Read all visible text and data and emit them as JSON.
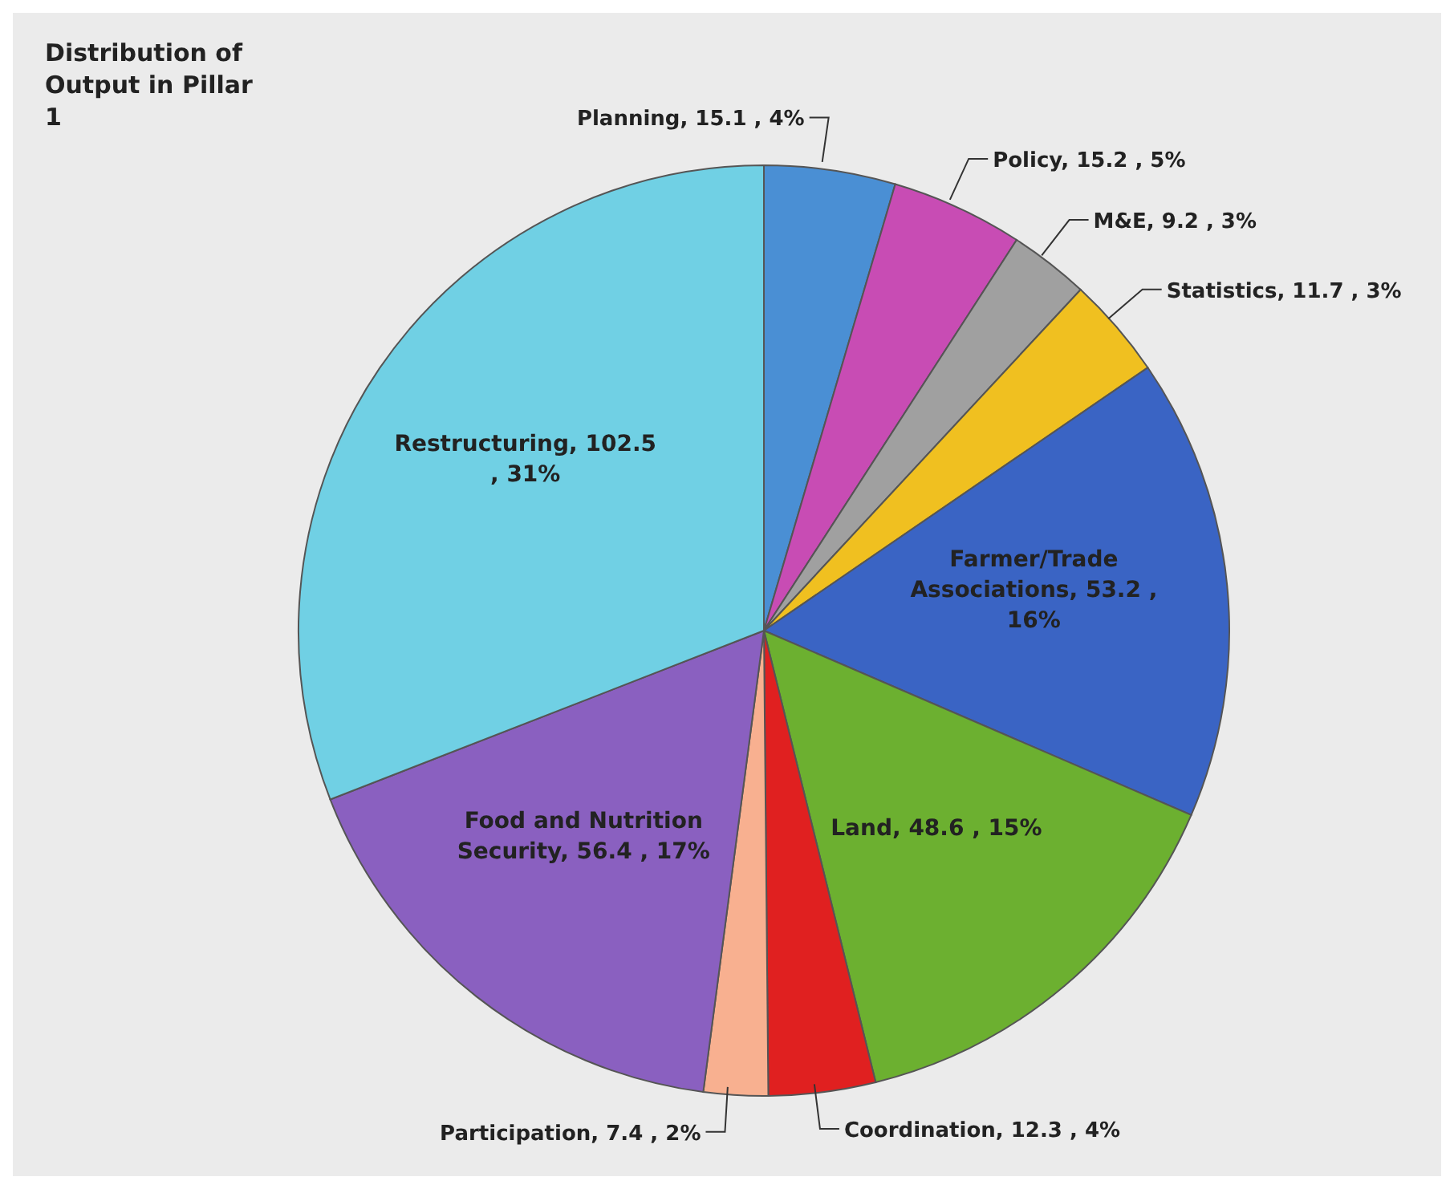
{
  "chart_data": {
    "type": "pie",
    "title": "Distribution of Output in Pillar 1",
    "categories": [
      "Planning",
      "Policy",
      "M&E",
      "Statistics",
      "Farmer/Trade Associations",
      "Land",
      "Coordination",
      "Participation",
      "Food and Nutrition Security",
      "Restructuring"
    ],
    "values": [
      15.1,
      15.2,
      9.2,
      11.7,
      53.2,
      48.6,
      12.3,
      7.4,
      56.4,
      102.5
    ],
    "value_labels": [
      "15.1 , 4%",
      "15.2 , 5%",
      "9.2 , 3%",
      "11.7 , 3%",
      "53.2 , 16%",
      "48.6 , 15%",
      "12.3 , 4%",
      "7.4 , 2%",
      "56.4 , 17%",
      "102.5 , 31%"
    ],
    "colors": [
      "#4a8fd4",
      "#c84cb4",
      "#a0a0a0",
      "#f0c020",
      "#3a64c4",
      "#6cb030",
      "#e02020",
      "#f8b090",
      "#8a60c0",
      "#70d0e4"
    ]
  }
}
